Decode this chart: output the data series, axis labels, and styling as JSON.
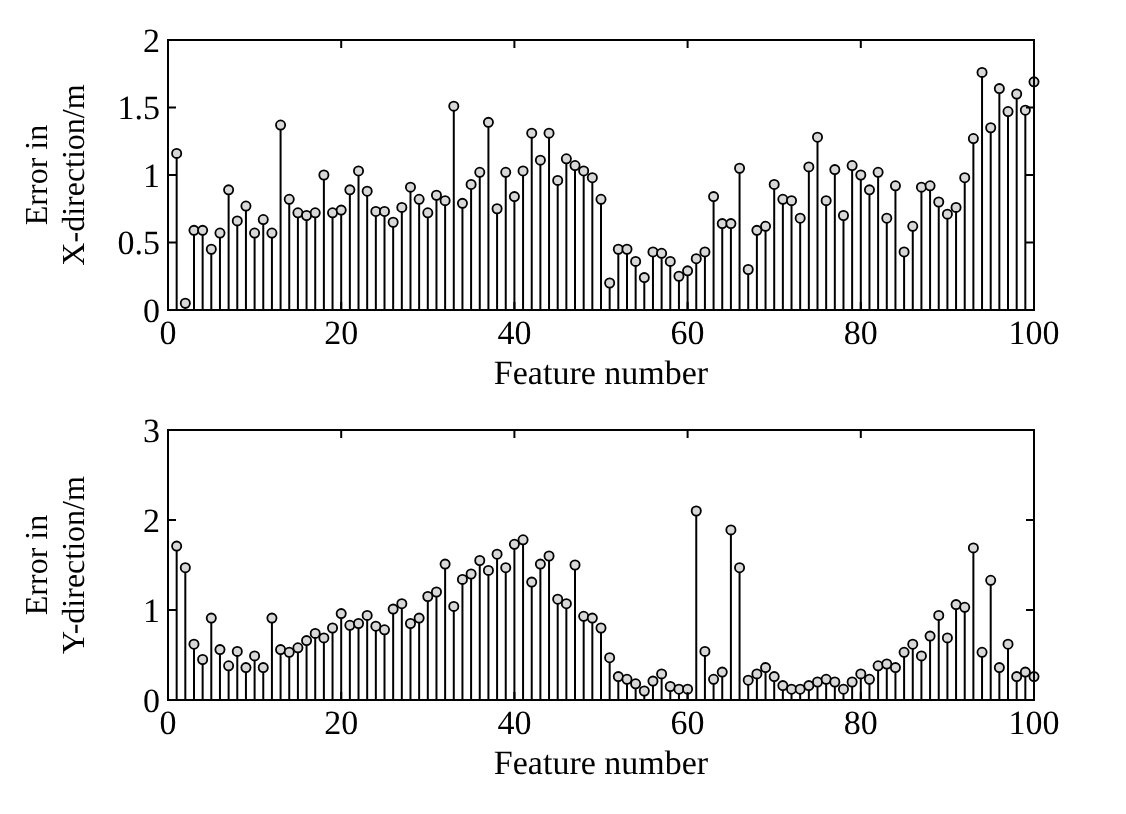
{
  "chart_data": [
    {
      "type": "lollipop",
      "xlabel": "Feature number",
      "ylabel": "Error in X-direction/m",
      "x": [
        1,
        2,
        3,
        4,
        5,
        6,
        7,
        8,
        9,
        10,
        11,
        12,
        13,
        14,
        15,
        16,
        17,
        18,
        19,
        20,
        21,
        22,
        23,
        24,
        25,
        26,
        27,
        28,
        29,
        30,
        31,
        32,
        33,
        34,
        35,
        36,
        37,
        38,
        39,
        40,
        41,
        42,
        43,
        44,
        45,
        46,
        47,
        48,
        49,
        50,
        51,
        52,
        53,
        54,
        55,
        56,
        57,
        58,
        59,
        60,
        61,
        62,
        63,
        64,
        65,
        66,
        67,
        68,
        69,
        70,
        71,
        72,
        73,
        74,
        75,
        76,
        77,
        78,
        79,
        80,
        81,
        82,
        83,
        84,
        85,
        86,
        87,
        88,
        89,
        90,
        91,
        92,
        93,
        94,
        95,
        96,
        97,
        98,
        99,
        100
      ],
      "values": [
        1.16,
        0.05,
        0.59,
        0.59,
        0.45,
        0.57,
        0.89,
        0.66,
        0.77,
        0.57,
        0.67,
        0.57,
        1.37,
        0.82,
        0.72,
        0.7,
        0.72,
        1.0,
        0.72,
        0.74,
        0.89,
        1.03,
        0.88,
        0.73,
        0.73,
        0.65,
        0.76,
        0.91,
        0.82,
        0.72,
        0.85,
        0.81,
        1.51,
        0.79,
        0.93,
        1.02,
        1.39,
        0.75,
        1.02,
        0.84,
        1.03,
        1.31,
        1.11,
        1.31,
        0.96,
        1.12,
        1.07,
        1.03,
        0.98,
        0.82,
        0.2,
        0.45,
        0.45,
        0.36,
        0.24,
        0.43,
        0.42,
        0.36,
        0.25,
        0.29,
        0.38,
        0.43,
        0.84,
        0.64,
        0.64,
        1.05,
        0.3,
        0.59,
        0.62,
        0.93,
        0.82,
        0.81,
        0.68,
        1.06,
        1.28,
        0.81,
        1.04,
        0.7,
        1.07,
        1.0,
        0.89,
        1.02,
        0.68,
        0.92,
        0.43,
        0.62,
        0.91,
        0.92,
        0.8,
        0.71,
        0.76,
        0.98,
        1.27,
        1.76,
        1.35,
        1.64,
        1.47,
        1.6,
        1.48,
        1.69
      ],
      "color": "#000000",
      "marker": "circle",
      "xlim": [
        0,
        100
      ],
      "xticks": [
        0,
        20,
        40,
        60,
        80,
        100
      ],
      "ylim": [
        0,
        2
      ],
      "yticks": [
        0,
        0.5,
        1,
        1.5,
        2
      ],
      "grid": false
    },
    {
      "type": "lollipop",
      "xlabel": "Feature number",
      "ylabel": "Error in Y-direction/m",
      "x": [
        1,
        2,
        3,
        4,
        5,
        6,
        7,
        8,
        9,
        10,
        11,
        12,
        13,
        14,
        15,
        16,
        17,
        18,
        19,
        20,
        21,
        22,
        23,
        24,
        25,
        26,
        27,
        28,
        29,
        30,
        31,
        32,
        33,
        34,
        35,
        36,
        37,
        38,
        39,
        40,
        41,
        42,
        43,
        44,
        45,
        46,
        47,
        48,
        49,
        50,
        51,
        52,
        53,
        54,
        55,
        56,
        57,
        58,
        59,
        60,
        61,
        62,
        63,
        64,
        65,
        66,
        67,
        68,
        69,
        70,
        71,
        72,
        73,
        74,
        75,
        76,
        77,
        78,
        79,
        80,
        81,
        82,
        83,
        84,
        85,
        86,
        87,
        88,
        89,
        90,
        91,
        92,
        93,
        94,
        95,
        96,
        97,
        98,
        99,
        100
      ],
      "values": [
        1.71,
        1.47,
        0.62,
        0.45,
        0.91,
        0.56,
        0.38,
        0.54,
        0.36,
        0.49,
        0.36,
        0.91,
        0.56,
        0.53,
        0.58,
        0.66,
        0.74,
        0.69,
        0.8,
        0.96,
        0.83,
        0.85,
        0.94,
        0.82,
        0.78,
        1.01,
        1.07,
        0.85,
        0.91,
        1.15,
        1.2,
        1.51,
        1.04,
        1.34,
        1.4,
        1.55,
        1.44,
        1.62,
        1.47,
        1.73,
        1.78,
        1.31,
        1.51,
        1.6,
        1.12,
        1.07,
        1.5,
        0.93,
        0.91,
        0.8,
        0.47,
        0.26,
        0.23,
        0.18,
        0.1,
        0.21,
        0.29,
        0.15,
        0.12,
        0.12,
        2.1,
        0.54,
        0.23,
        0.31,
        1.89,
        1.47,
        0.22,
        0.29,
        0.36,
        0.26,
        0.16,
        0.12,
        0.12,
        0.16,
        0.2,
        0.23,
        0.2,
        0.12,
        0.2,
        0.29,
        0.23,
        0.38,
        0.4,
        0.36,
        0.53,
        0.62,
        0.49,
        0.71,
        0.94,
        0.69,
        1.06,
        1.03,
        1.69,
        0.53,
        1.33,
        0.36,
        0.62,
        0.26,
        0.31,
        0.26
      ],
      "color": "#000000",
      "marker": "circle",
      "xlim": [
        0,
        100
      ],
      "xticks": [
        0,
        20,
        40,
        60,
        80,
        100
      ],
      "ylim": [
        0,
        3
      ],
      "yticks": [
        0,
        1,
        2,
        3
      ],
      "grid": false
    }
  ]
}
